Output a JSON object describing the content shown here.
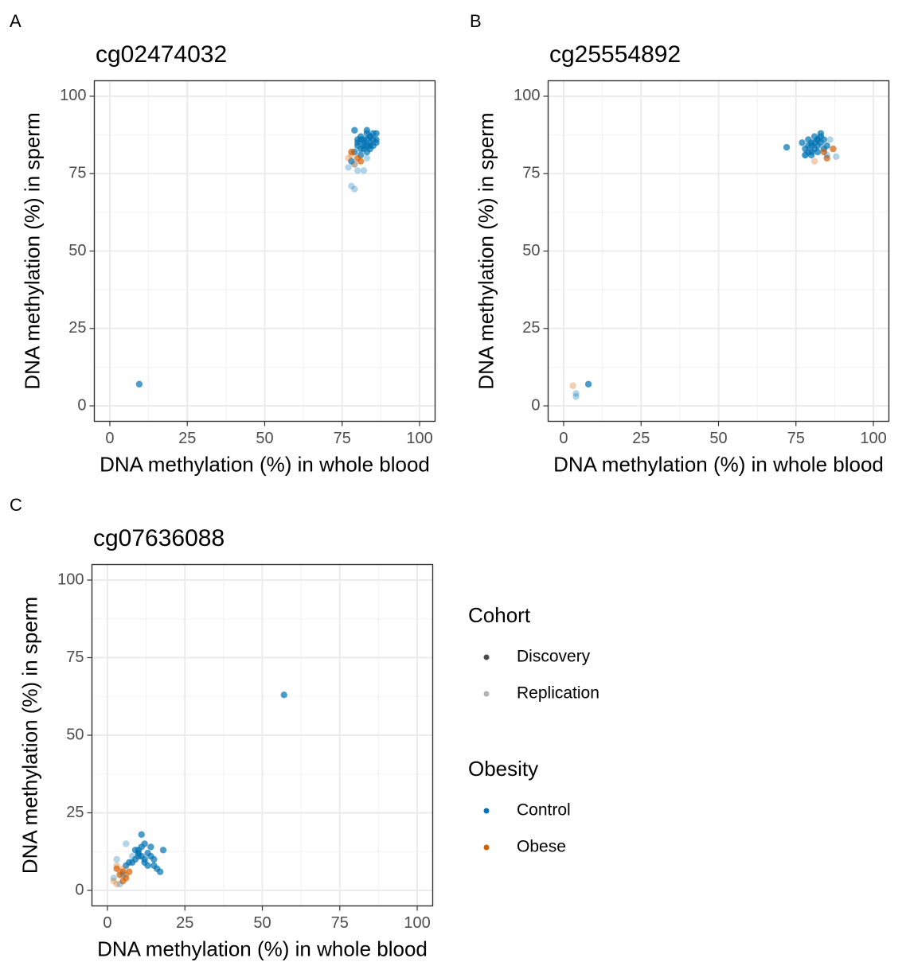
{
  "chart_data": [
    {
      "type": "scatter",
      "panel_label": "A",
      "title": "cg02474032",
      "xlabel": "DNA methylation (%) in whole blood",
      "ylabel": "DNA methylation (%) in sperm",
      "xlim": [
        -5,
        105
      ],
      "ylim": [
        -5,
        105
      ],
      "xticks": [
        0,
        25,
        50,
        75,
        100
      ],
      "yticks": [
        0,
        25,
        50,
        75,
        100
      ],
      "xminor": [
        12.5,
        37.5,
        62.5,
        87.5
      ],
      "yminor": [
        12.5,
        37.5,
        62.5,
        87.5
      ],
      "grid": true,
      "series": [
        {
          "cohort": "Discovery",
          "obesity": "Control",
          "x": [
            82,
            84,
            80,
            83,
            85,
            81,
            86,
            79,
            82,
            84,
            83,
            81,
            85,
            80,
            84,
            86,
            82,
            83,
            78,
            81,
            83,
            85,
            84,
            82,
            80,
            86,
            83,
            81,
            79,
            84,
            9.5
          ],
          "values": [
            85,
            87,
            84,
            86,
            88,
            83,
            86,
            89,
            84,
            85,
            82,
            87,
            84,
            85,
            83,
            88,
            86,
            89,
            79,
            81,
            84,
            86,
            87,
            83,
            86,
            85,
            88,
            86,
            82,
            84,
            7
          ]
        },
        {
          "cohort": "Discovery",
          "obesity": "Obese",
          "x": [
            80,
            81,
            78
          ],
          "values": [
            80,
            79,
            82
          ]
        },
        {
          "cohort": "Replication",
          "obesity": "Control",
          "x": [
            78,
            79,
            80,
            77,
            82,
            83,
            79
          ],
          "values": [
            71,
            70,
            76,
            77,
            76,
            80,
            78
          ]
        },
        {
          "cohort": "Replication",
          "obesity": "Obese",
          "x": [
            77,
            79,
            78
          ],
          "values": [
            80,
            78,
            81
          ]
        }
      ]
    },
    {
      "type": "scatter",
      "panel_label": "B",
      "title": "cg25554892",
      "xlabel": "DNA methylation (%) in whole blood",
      "ylabel": "DNA methylation (%) in sperm",
      "xlim": [
        -5,
        105
      ],
      "ylim": [
        -5,
        105
      ],
      "xticks": [
        0,
        25,
        50,
        75,
        100
      ],
      "yticks": [
        0,
        25,
        50,
        75,
        100
      ],
      "xminor": [
        12.5,
        37.5,
        62.5,
        87.5
      ],
      "yminor": [
        12.5,
        37.5,
        62.5,
        87.5
      ],
      "grid": true,
      "series": [
        {
          "cohort": "Discovery",
          "obesity": "Control",
          "x": [
            80,
            82,
            78,
            81,
            83,
            79,
            84,
            80,
            82,
            77,
            85,
            81,
            79,
            83,
            82,
            80,
            78,
            84,
            81,
            83,
            79,
            82,
            80,
            72,
            8
          ],
          "values": [
            84,
            86,
            83,
            85,
            87,
            82,
            86,
            81,
            84,
            85,
            84,
            83,
            86,
            88,
            82,
            85,
            81,
            83,
            87,
            85,
            84,
            86,
            82,
            83.5,
            7
          ]
        },
        {
          "cohort": "Discovery",
          "obesity": "Obese",
          "x": [
            84,
            87,
            85
          ],
          "values": [
            82,
            83,
            80
          ]
        },
        {
          "cohort": "Replication",
          "obesity": "Control",
          "x": [
            78,
            86,
            88,
            85,
            4,
            4
          ],
          "values": [
            81,
            86,
            80.5,
            81,
            4,
            3
          ]
        },
        {
          "cohort": "Replication",
          "obesity": "Obese",
          "x": [
            81,
            3
          ],
          "values": [
            79,
            6.5
          ]
        }
      ]
    },
    {
      "type": "scatter",
      "panel_label": "C",
      "title": "cg07636088",
      "xlabel": "DNA methylation (%) in whole blood",
      "ylabel": "DNA methylation (%) in sperm",
      "xlim": [
        -5,
        105
      ],
      "ylim": [
        -5,
        105
      ],
      "xticks": [
        0,
        25,
        50,
        75,
        100
      ],
      "yticks": [
        0,
        25,
        50,
        75,
        100
      ],
      "xminor": [
        12.5,
        37.5,
        62.5,
        87.5
      ],
      "yminor": [
        12.5,
        37.5,
        62.5,
        87.5
      ],
      "grid": true,
      "series": [
        {
          "cohort": "Discovery",
          "obesity": "Control",
          "x": [
            10,
            12,
            8,
            14,
            11,
            9,
            13,
            15,
            10,
            12,
            16,
            7,
            11,
            13,
            9,
            14,
            17,
            12,
            10,
            18,
            11,
            15,
            6,
            57
          ],
          "values": [
            12,
            10,
            9,
            11,
            14,
            13,
            8,
            10,
            11,
            15,
            7,
            9,
            18,
            12,
            10,
            14,
            6,
            9,
            13,
            13,
            11,
            8,
            8,
            63
          ]
        },
        {
          "cohort": "Discovery",
          "obesity": "Obese",
          "x": [
            4,
            5,
            6,
            3,
            7,
            5
          ],
          "values": [
            5,
            6,
            4,
            7,
            6,
            3
          ]
        },
        {
          "cohort": "Replication",
          "obesity": "Control",
          "x": [
            3,
            6,
            8,
            2,
            4,
            5,
            10
          ],
          "values": [
            10,
            15,
            11,
            4,
            2,
            5,
            12
          ]
        },
        {
          "cohort": "Replication",
          "obesity": "Obese",
          "x": [
            2,
            3,
            4,
            5,
            6,
            3
          ],
          "values": [
            3,
            8,
            6,
            7,
            5,
            2
          ]
        }
      ]
    }
  ],
  "legend": [
    {
      "title": "Cohort",
      "items": [
        {
          "label": "Discovery",
          "color": "#000000",
          "alpha": 0.7
        },
        {
          "label": "Replication",
          "color": "#000000",
          "alpha": 0.3
        }
      ]
    },
    {
      "title": "Obesity",
      "items": [
        {
          "label": "Control",
          "color": "#0072B2",
          "alpha": 1
        },
        {
          "label": "Obese",
          "color": "#D55E00",
          "alpha": 1
        }
      ]
    }
  ]
}
